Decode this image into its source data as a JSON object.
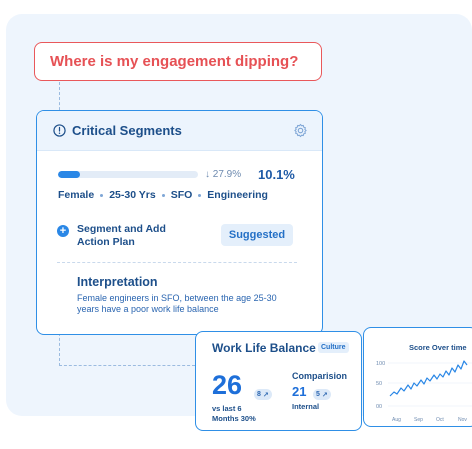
{
  "question": {
    "text": "Where is my engagement dipping?"
  },
  "critical_segments": {
    "title": "Critical Segments",
    "progress_fraction": 0.16,
    "delta": "↓ 27.9%",
    "percent": "10.1%",
    "tags": [
      "Female",
      "25-30 Yrs",
      "SFO",
      "Engineering"
    ],
    "action_label": "Segment and Add Action Plan",
    "suggested_label": "Suggested",
    "interpretation_title": "Interpretation",
    "interpretation_body": "Female engineers in SFO, between the age 25-30 years have a poor work life balance"
  },
  "work_life_balance": {
    "title": "Work Life Balance",
    "tag": "Culture",
    "score": "26",
    "score_badge": "8",
    "vs_line1": "vs last 6",
    "vs_line2": "Months 30%",
    "comparison_label": "Comparision",
    "comparison_value": "21",
    "comparison_badge": "5",
    "internal_label": "Internal"
  },
  "score_over_time": {
    "title": "Score Over time",
    "y_ticks": [
      "100",
      "50",
      "00"
    ],
    "x_ticks": [
      "Aug",
      "Sep",
      "Oct",
      "Nov"
    ],
    "colors": {
      "line": "#2a87e6",
      "accent": "#e65155"
    }
  }
}
